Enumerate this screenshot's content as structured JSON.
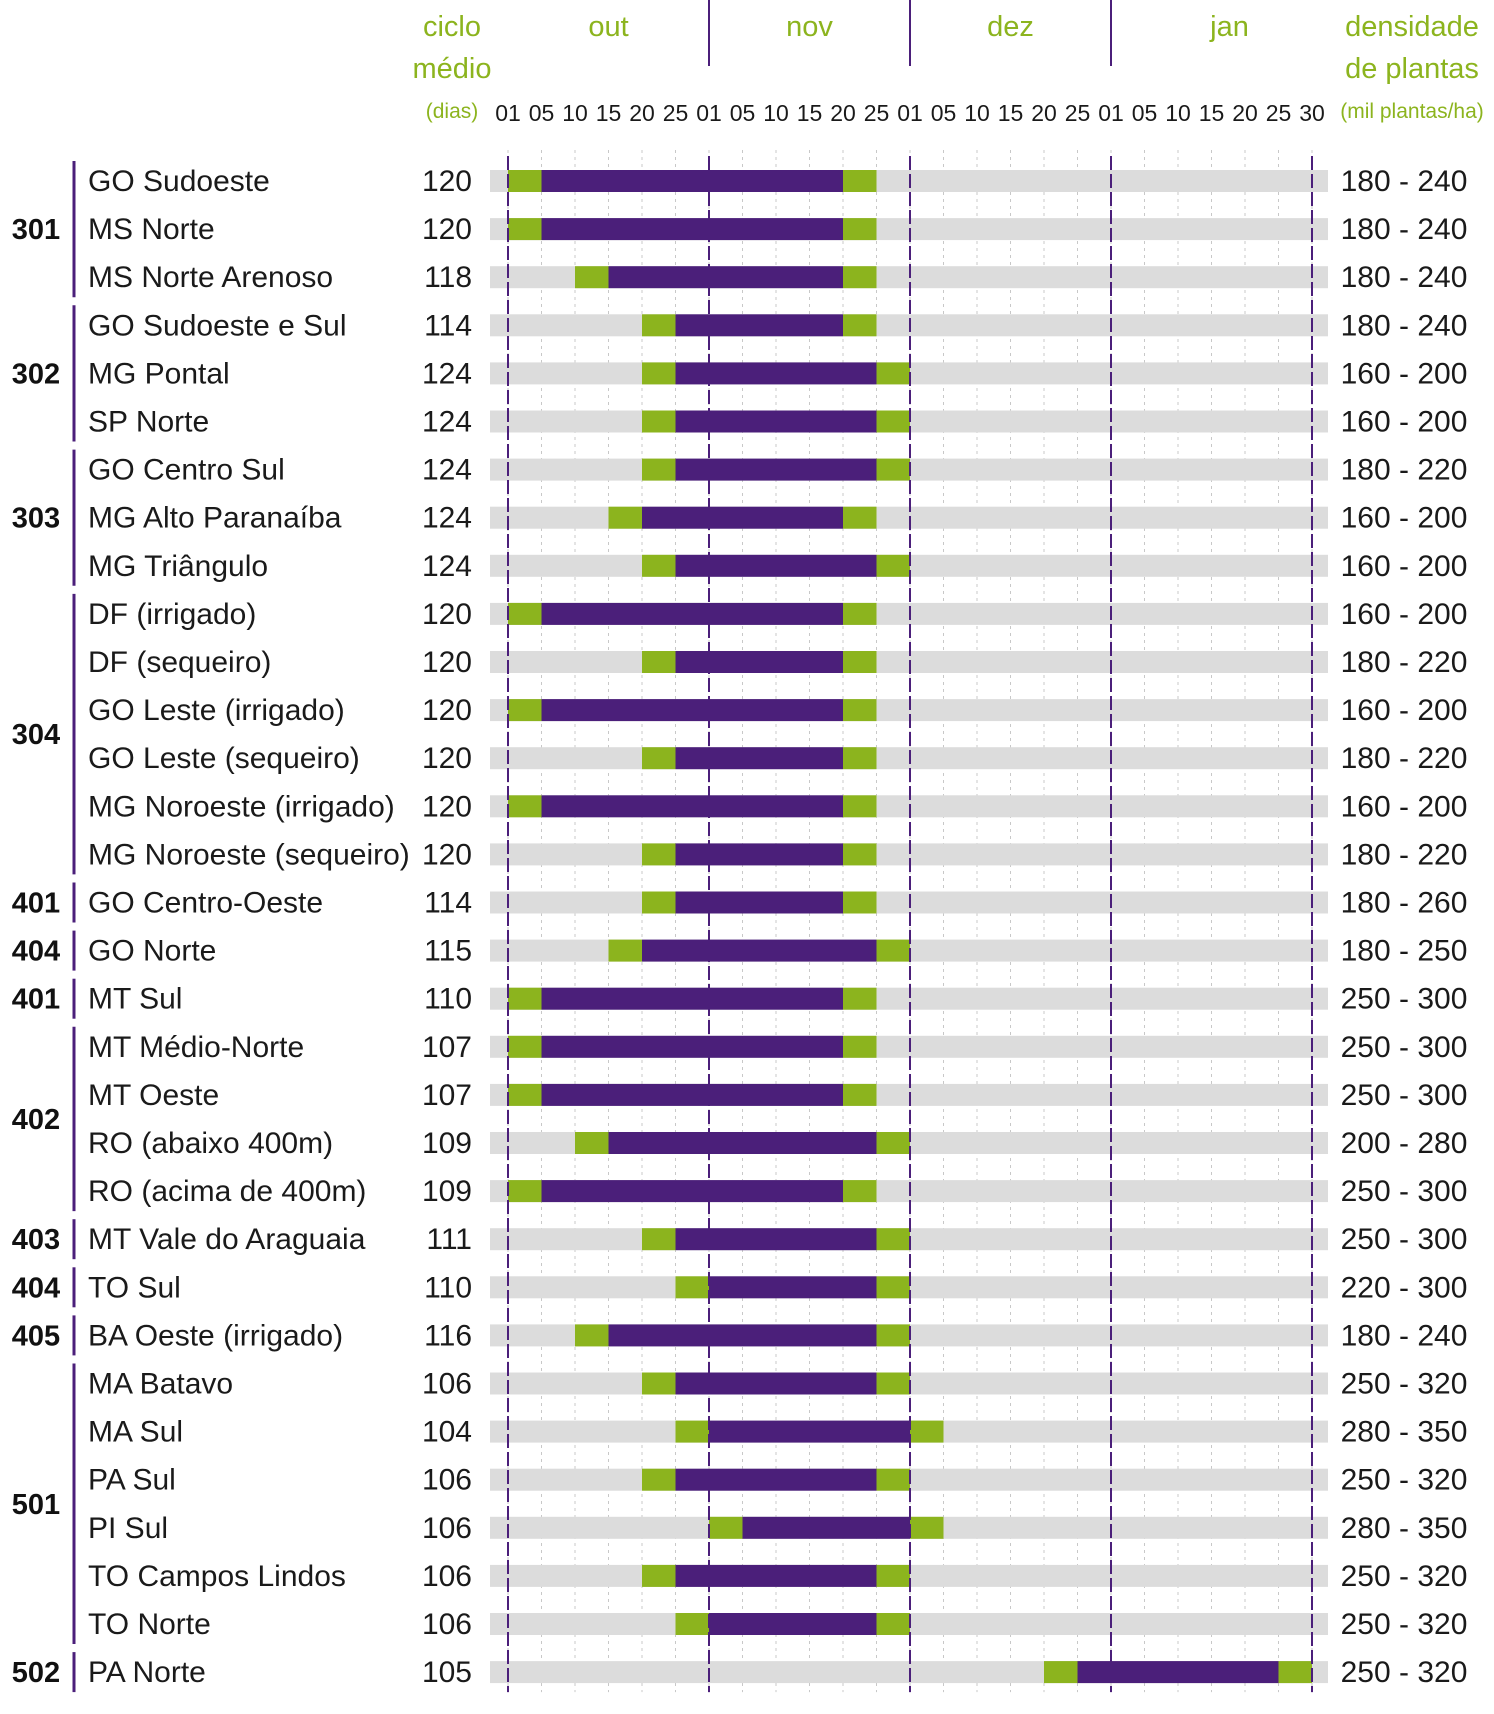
{
  "chart_data": {
    "type": "gantt",
    "headers": {
      "cycle": [
        "ciclo",
        "médio",
        "(dias)"
      ],
      "density": [
        "densidade",
        "de plantas",
        "(mil plantas/ha)"
      ]
    },
    "months": [
      {
        "name": "out",
        "ticks": [
          "01",
          "05",
          "10",
          "15",
          "20",
          "25"
        ]
      },
      {
        "name": "nov",
        "ticks": [
          "01",
          "05",
          "10",
          "15",
          "20",
          "25"
        ]
      },
      {
        "name": "dez",
        "ticks": [
          "01",
          "05",
          "10",
          "15",
          "20",
          "25"
        ]
      },
      {
        "name": "jan",
        "ticks": [
          "01",
          "05",
          "10",
          "15",
          "20",
          "25",
          "30"
        ]
      }
    ],
    "colors": {
      "track": "#dcdcdc",
      "green": "#8cb41e",
      "purple": "#4b1f7a",
      "group_line": "#4b1f7a"
    },
    "groups": [
      {
        "code": "301",
        "rows": 3
      },
      {
        "code": "302",
        "rows": 3
      },
      {
        "code": "303",
        "rows": 3
      },
      {
        "code": "304",
        "rows": 6
      },
      {
        "code": "401",
        "rows": 1
      },
      {
        "code": "404",
        "rows": 1
      },
      {
        "code": "401",
        "rows": 1
      },
      {
        "code": "402",
        "rows": 4
      },
      {
        "code": "403",
        "rows": 1
      },
      {
        "code": "404",
        "rows": 1
      },
      {
        "code": "405",
        "rows": 1
      },
      {
        "code": "501",
        "rows": 6
      },
      {
        "code": "502",
        "rows": 1
      }
    ],
    "rows": [
      {
        "label": "GO Sudoeste",
        "cycle": "120",
        "density": "180 - 240",
        "green_start": "out 01",
        "purple_start": "out 05",
        "purple_end": "nov 20",
        "green_end": "nov 25"
      },
      {
        "label": "MS Norte",
        "cycle": "120",
        "density": "180 - 240",
        "green_start": "out 01",
        "purple_start": "out 05",
        "purple_end": "nov 20",
        "green_end": "nov 25"
      },
      {
        "label": "MS Norte Arenoso",
        "cycle": "118",
        "density": "180 - 240",
        "green_start": "out 10",
        "purple_start": "out 15",
        "purple_end": "nov 20",
        "green_end": "nov 25"
      },
      {
        "label": "GO Sudoeste e Sul",
        "cycle": "114",
        "density": "180 - 240",
        "green_start": "out 20",
        "purple_start": "out 25",
        "purple_end": "nov 20",
        "green_end": "nov 25"
      },
      {
        "label": "MG Pontal",
        "cycle": "124",
        "density": "160 - 200",
        "green_start": "out 20",
        "purple_start": "out 25",
        "purple_end": "nov 25",
        "green_end": "dez 01"
      },
      {
        "label": "SP Norte",
        "cycle": "124",
        "density": "160 - 200",
        "green_start": "out 20",
        "purple_start": "out 25",
        "purple_end": "nov 25",
        "green_end": "dez 01"
      },
      {
        "label": "GO Centro Sul",
        "cycle": "124",
        "density": "180 - 220",
        "green_start": "out 20",
        "purple_start": "out 25",
        "purple_end": "nov 25",
        "green_end": "dez 01"
      },
      {
        "label": "MG Alto Paranaíba",
        "cycle": "124",
        "density": "160 - 200",
        "green_start": "out 15",
        "purple_start": "out 20",
        "purple_end": "nov 20",
        "green_end": "nov 25"
      },
      {
        "label": "MG Triângulo",
        "cycle": "124",
        "density": "160 - 200",
        "green_start": "out 20",
        "purple_start": "out 25",
        "purple_end": "nov 25",
        "green_end": "dez 01"
      },
      {
        "label": "DF (irrigado)",
        "cycle": "120",
        "density": "160 - 200",
        "green_start": "out 01",
        "purple_start": "out 05",
        "purple_end": "nov 20",
        "green_end": "nov 25"
      },
      {
        "label": "DF (sequeiro)",
        "cycle": "120",
        "density": "180 - 220",
        "green_start": "out 20",
        "purple_start": "out 25",
        "purple_end": "nov 20",
        "green_end": "nov 25"
      },
      {
        "label": "GO Leste (irrigado)",
        "cycle": "120",
        "density": "160 - 200",
        "green_start": "out 01",
        "purple_start": "out 05",
        "purple_end": "nov 20",
        "green_end": "nov 25"
      },
      {
        "label": "GO Leste (sequeiro)",
        "cycle": "120",
        "density": "180 - 220",
        "green_start": "out 20",
        "purple_start": "out 25",
        "purple_end": "nov 20",
        "green_end": "nov 25"
      },
      {
        "label": "MG Noroeste (irrigado)",
        "cycle": "120",
        "density": "160 - 200",
        "green_start": "out 01",
        "purple_start": "out 05",
        "purple_end": "nov 20",
        "green_end": "nov 25"
      },
      {
        "label": "MG Noroeste (sequeiro)",
        "cycle": "120",
        "density": "180 - 220",
        "green_start": "out 20",
        "purple_start": "out 25",
        "purple_end": "nov 20",
        "green_end": "nov 25"
      },
      {
        "label": "GO Centro-Oeste",
        "cycle": "114",
        "density": "180 - 260",
        "green_start": "out 20",
        "purple_start": "out 25",
        "purple_end": "nov 20",
        "green_end": "nov 25"
      },
      {
        "label": "GO Norte",
        "cycle": "115",
        "density": "180 - 250",
        "green_start": "out 15",
        "purple_start": "out 20",
        "purple_end": "nov 25",
        "green_end": "dez 01"
      },
      {
        "label": "MT Sul",
        "cycle": "110",
        "density": "250 - 300",
        "green_start": "out 01",
        "purple_start": "out 05",
        "purple_end": "nov 20",
        "green_end": "nov 25"
      },
      {
        "label": "MT Médio-Norte",
        "cycle": "107",
        "density": "250 - 300",
        "green_start": "out 01",
        "purple_start": "out 05",
        "purple_end": "nov 20",
        "green_end": "nov 25"
      },
      {
        "label": "MT Oeste",
        "cycle": "107",
        "density": "250 - 300",
        "green_start": "out 01",
        "purple_start": "out 05",
        "purple_end": "nov 20",
        "green_end": "nov 25"
      },
      {
        "label": "RO (abaixo 400m)",
        "cycle": "109",
        "density": "200 - 280",
        "green_start": "out 10",
        "purple_start": "out 15",
        "purple_end": "nov 25",
        "green_end": "dez 01"
      },
      {
        "label": "RO (acima de 400m)",
        "cycle": "109",
        "density": "250 - 300",
        "green_start": "out 01",
        "purple_start": "out 05",
        "purple_end": "nov 20",
        "green_end": "nov 25"
      },
      {
        "label": "MT Vale do Araguaia",
        "cycle": "111",
        "density": "250 - 300",
        "green_start": "out 20",
        "purple_start": "out 25",
        "purple_end": "nov 25",
        "green_end": "dez 01"
      },
      {
        "label": "TO Sul",
        "cycle": "110",
        "density": "220 - 300",
        "green_start": "out 25",
        "purple_start": "nov 01",
        "purple_end": "nov 25",
        "green_end": "dez 01"
      },
      {
        "label": "BA Oeste (irrigado)",
        "cycle": "116",
        "density": "180 - 240",
        "green_start": "out 10",
        "purple_start": "out 15",
        "purple_end": "nov 25",
        "green_end": "dez 01"
      },
      {
        "label": "MA Batavo",
        "cycle": "106",
        "density": "250 - 320",
        "green_start": "out 20",
        "purple_start": "out 25",
        "purple_end": "nov 25",
        "green_end": "dez 01"
      },
      {
        "label": "MA Sul",
        "cycle": "104",
        "density": "280 - 350",
        "green_start": "out 25",
        "purple_start": "nov 01",
        "purple_end": "dez 01",
        "green_end": "dez 05"
      },
      {
        "label": "PA Sul",
        "cycle": "106",
        "density": "250 - 320",
        "green_start": "out 20",
        "purple_start": "out 25",
        "purple_end": "nov 25",
        "green_end": "dez 01"
      },
      {
        "label": "PI Sul",
        "cycle": "106",
        "density": "280 - 350",
        "green_start": "nov 01",
        "purple_start": "nov 05",
        "purple_end": "dez 01",
        "green_end": "dez 05"
      },
      {
        "label": "TO Campos Lindos",
        "cycle": "106",
        "density": "250 - 320",
        "green_start": "out 20",
        "purple_start": "out 25",
        "purple_end": "nov 25",
        "green_end": "dez 01"
      },
      {
        "label": "TO Norte",
        "cycle": "106",
        "density": "250 - 320",
        "green_start": "out 25",
        "purple_start": "nov 01",
        "purple_end": "nov 25",
        "green_end": "dez 01"
      },
      {
        "label": "PA Norte",
        "cycle": "105",
        "density": "250 - 320",
        "green_start": "dez 20",
        "purple_start": "dez 25",
        "purple_end": "jan 25",
        "green_end": "jan 30"
      }
    ]
  }
}
